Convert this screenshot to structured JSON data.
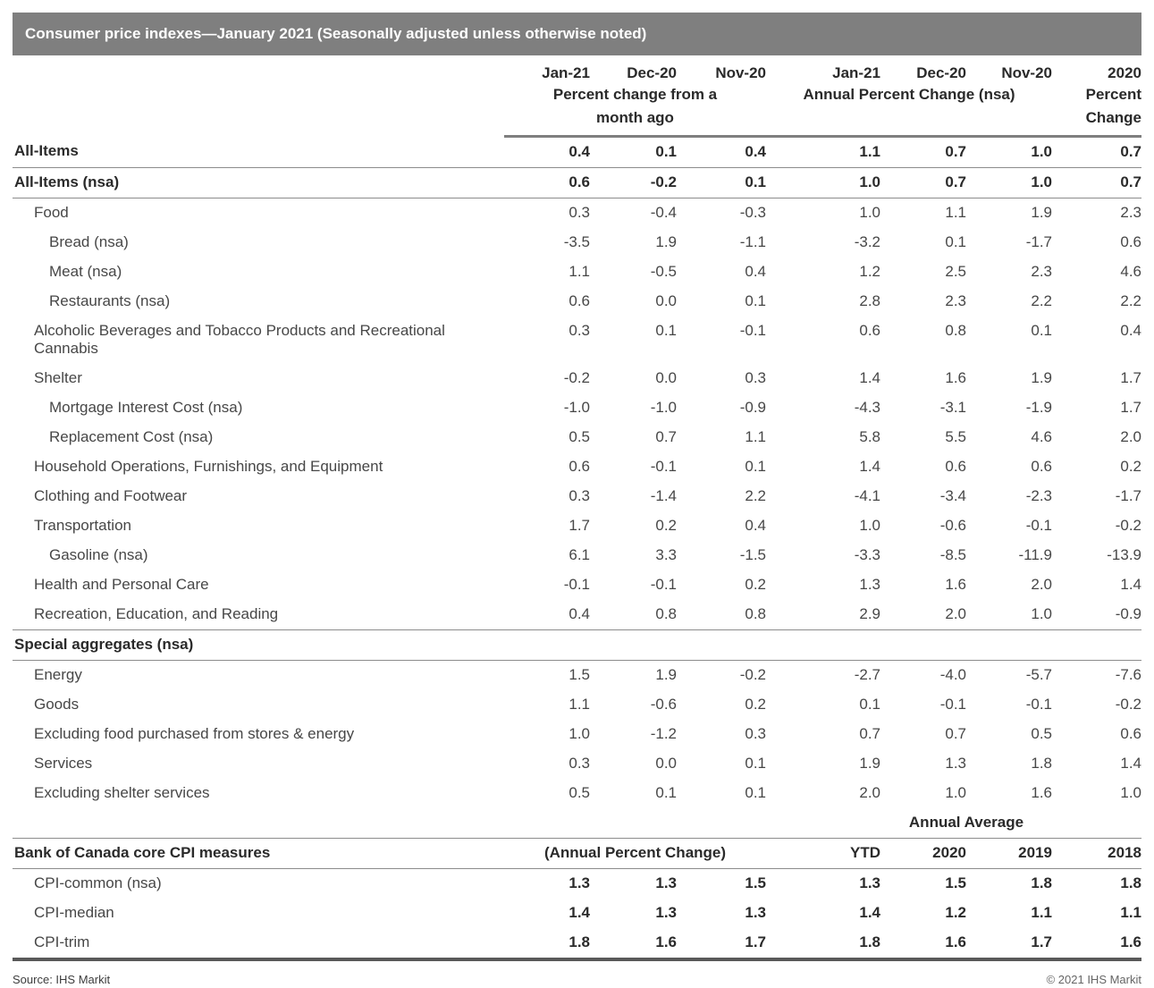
{
  "title": "Consumer price indexes—January 2021 (Seasonally adjusted unless otherwise noted)",
  "columns": {
    "monthly_group": [
      "Jan-21",
      "Dec-20",
      "Nov-20"
    ],
    "monthly_subtitle": "Percent change from a month ago",
    "annual_group": [
      "Jan-21",
      "Dec-20",
      "Nov-20"
    ],
    "annual_subtitle": "Annual Percent Change (nsa)",
    "year_col": "2020",
    "year_subtitle": "Percent Change"
  },
  "rows": [
    {
      "type": "data",
      "label": "All-Items",
      "indent": 0,
      "label_bold": true,
      "values_bold": true,
      "rule_below": true,
      "values": [
        "0.4",
        "0.1",
        "0.4",
        "1.1",
        "0.7",
        "1.0",
        "0.7"
      ]
    },
    {
      "type": "data",
      "label": "All-Items (nsa)",
      "indent": 0,
      "label_bold": true,
      "values_bold": true,
      "rule_below": true,
      "values": [
        "0.6",
        "-0.2",
        "0.1",
        "1.0",
        "0.7",
        "1.0",
        "0.7"
      ]
    },
    {
      "type": "data",
      "label": "Food",
      "indent": 1,
      "values": [
        "0.3",
        "-0.4",
        "-0.3",
        "1.0",
        "1.1",
        "1.9",
        "2.3"
      ]
    },
    {
      "type": "data",
      "label": "Bread (nsa)",
      "indent": 2,
      "values": [
        "-3.5",
        "1.9",
        "-1.1",
        "-3.2",
        "0.1",
        "-1.7",
        "0.6"
      ]
    },
    {
      "type": "data",
      "label": "Meat (nsa)",
      "indent": 2,
      "values": [
        "1.1",
        "-0.5",
        "0.4",
        "1.2",
        "2.5",
        "2.3",
        "4.6"
      ]
    },
    {
      "type": "data",
      "label": "Restaurants (nsa)",
      "indent": 2,
      "values": [
        "0.6",
        "0.0",
        "0.1",
        "2.8",
        "2.3",
        "2.2",
        "2.2"
      ]
    },
    {
      "type": "data",
      "label": "Alcoholic Beverages and Tobacco Products and Recreational Cannabis",
      "indent": 1,
      "values": [
        "0.3",
        "0.1",
        "-0.1",
        "0.6",
        "0.8",
        "0.1",
        "0.4"
      ]
    },
    {
      "type": "data",
      "label": "Shelter",
      "indent": 1,
      "values": [
        "-0.2",
        "0.0",
        "0.3",
        "1.4",
        "1.6",
        "1.9",
        "1.7"
      ]
    },
    {
      "type": "data",
      "label": "Mortgage Interest Cost (nsa)",
      "indent": 2,
      "values": [
        "-1.0",
        "-1.0",
        "-0.9",
        "-4.3",
        "-3.1",
        "-1.9",
        "1.7"
      ]
    },
    {
      "type": "data",
      "label": "Replacement Cost (nsa)",
      "indent": 2,
      "values": [
        "0.5",
        "0.7",
        "1.1",
        "5.8",
        "5.5",
        "4.6",
        "2.0"
      ]
    },
    {
      "type": "data",
      "label": "Household Operations, Furnishings, and Equipment",
      "indent": 1,
      "values": [
        "0.6",
        "-0.1",
        "0.1",
        "1.4",
        "0.6",
        "0.6",
        "0.2"
      ]
    },
    {
      "type": "data",
      "label": "Clothing and Footwear",
      "indent": 1,
      "values": [
        "0.3",
        "-1.4",
        "2.2",
        "-4.1",
        "-3.4",
        "-2.3",
        "-1.7"
      ]
    },
    {
      "type": "data",
      "label": "Transportation",
      "indent": 1,
      "values": [
        "1.7",
        "0.2",
        "0.4",
        "1.0",
        "-0.6",
        "-0.1",
        "-0.2"
      ]
    },
    {
      "type": "data",
      "label": "Gasoline (nsa)",
      "indent": 2,
      "values": [
        "6.1",
        "3.3",
        "-1.5",
        "-3.3",
        "-8.5",
        "-11.9",
        "-13.9"
      ]
    },
    {
      "type": "data",
      "label": "Health and Personal Care",
      "indent": 1,
      "values": [
        "-0.1",
        "-0.1",
        "0.2",
        "1.3",
        "1.6",
        "2.0",
        "1.4"
      ]
    },
    {
      "type": "data",
      "label": "Recreation, Education, and Reading",
      "indent": 1,
      "values": [
        "0.4",
        "0.8",
        "0.8",
        "2.9",
        "2.0",
        "1.0",
        "-0.9"
      ]
    },
    {
      "type": "section",
      "label": "Special aggregates (nsa)",
      "rule_above": true,
      "rule_below": true
    },
    {
      "type": "data",
      "label": "Energy",
      "indent": 1,
      "values": [
        "1.5",
        "1.9",
        "-0.2",
        "-2.7",
        "-4.0",
        "-5.7",
        "-7.6"
      ]
    },
    {
      "type": "data",
      "label": "Goods",
      "indent": 1,
      "values": [
        "1.1",
        "-0.6",
        "0.2",
        "0.1",
        "-0.1",
        "-0.1",
        "-0.2"
      ]
    },
    {
      "type": "data",
      "label": "Excluding food purchased from stores & energy",
      "indent": 1,
      "values": [
        "1.0",
        "-1.2",
        "0.3",
        "0.7",
        "0.7",
        "0.5",
        "0.6"
      ]
    },
    {
      "type": "data",
      "label": "Services",
      "indent": 1,
      "values": [
        "0.3",
        "0.0",
        "0.1",
        "1.9",
        "1.3",
        "1.8",
        "1.4"
      ]
    },
    {
      "type": "data",
      "label": "Excluding shelter services",
      "indent": 1,
      "values": [
        "0.5",
        "0.1",
        "0.1",
        "2.0",
        "1.0",
        "1.6",
        "1.0"
      ]
    },
    {
      "type": "annual_average_note",
      "note": "Annual Average",
      "rule_below": true
    },
    {
      "type": "group_header",
      "label": "Bank of Canada core CPI measures",
      "note": "(Annual Percent Change)",
      "year_headers": [
        "YTD",
        "2020",
        "2019",
        "2018"
      ],
      "rule_below": true
    },
    {
      "type": "data",
      "label": "CPI-common (nsa)",
      "indent": 1,
      "values_bold": true,
      "values": [
        "1.3",
        "1.3",
        "1.5",
        "1.3",
        "1.5",
        "1.8",
        "1.8"
      ]
    },
    {
      "type": "data",
      "label": "CPI-median",
      "indent": 1,
      "values_bold": true,
      "values": [
        "1.4",
        "1.3",
        "1.3",
        "1.4",
        "1.2",
        "1.1",
        "1.1"
      ]
    },
    {
      "type": "data",
      "label": "CPI-trim",
      "indent": 1,
      "values_bold": true,
      "thick_below": true,
      "values": [
        "1.8",
        "1.6",
        "1.7",
        "1.8",
        "1.6",
        "1.7",
        "1.6"
      ]
    }
  ],
  "footer": {
    "source": "Source: IHS Markit",
    "copyright": "© 2021 IHS Markit"
  },
  "colors": {
    "title_bar_bg": "#7f7f7f",
    "title_text": "#ffffff",
    "rule_thin": "#8c8c8c",
    "rule_thick": "#595959",
    "text_bold": "#2a2a2a",
    "text_regular": "#474747"
  }
}
